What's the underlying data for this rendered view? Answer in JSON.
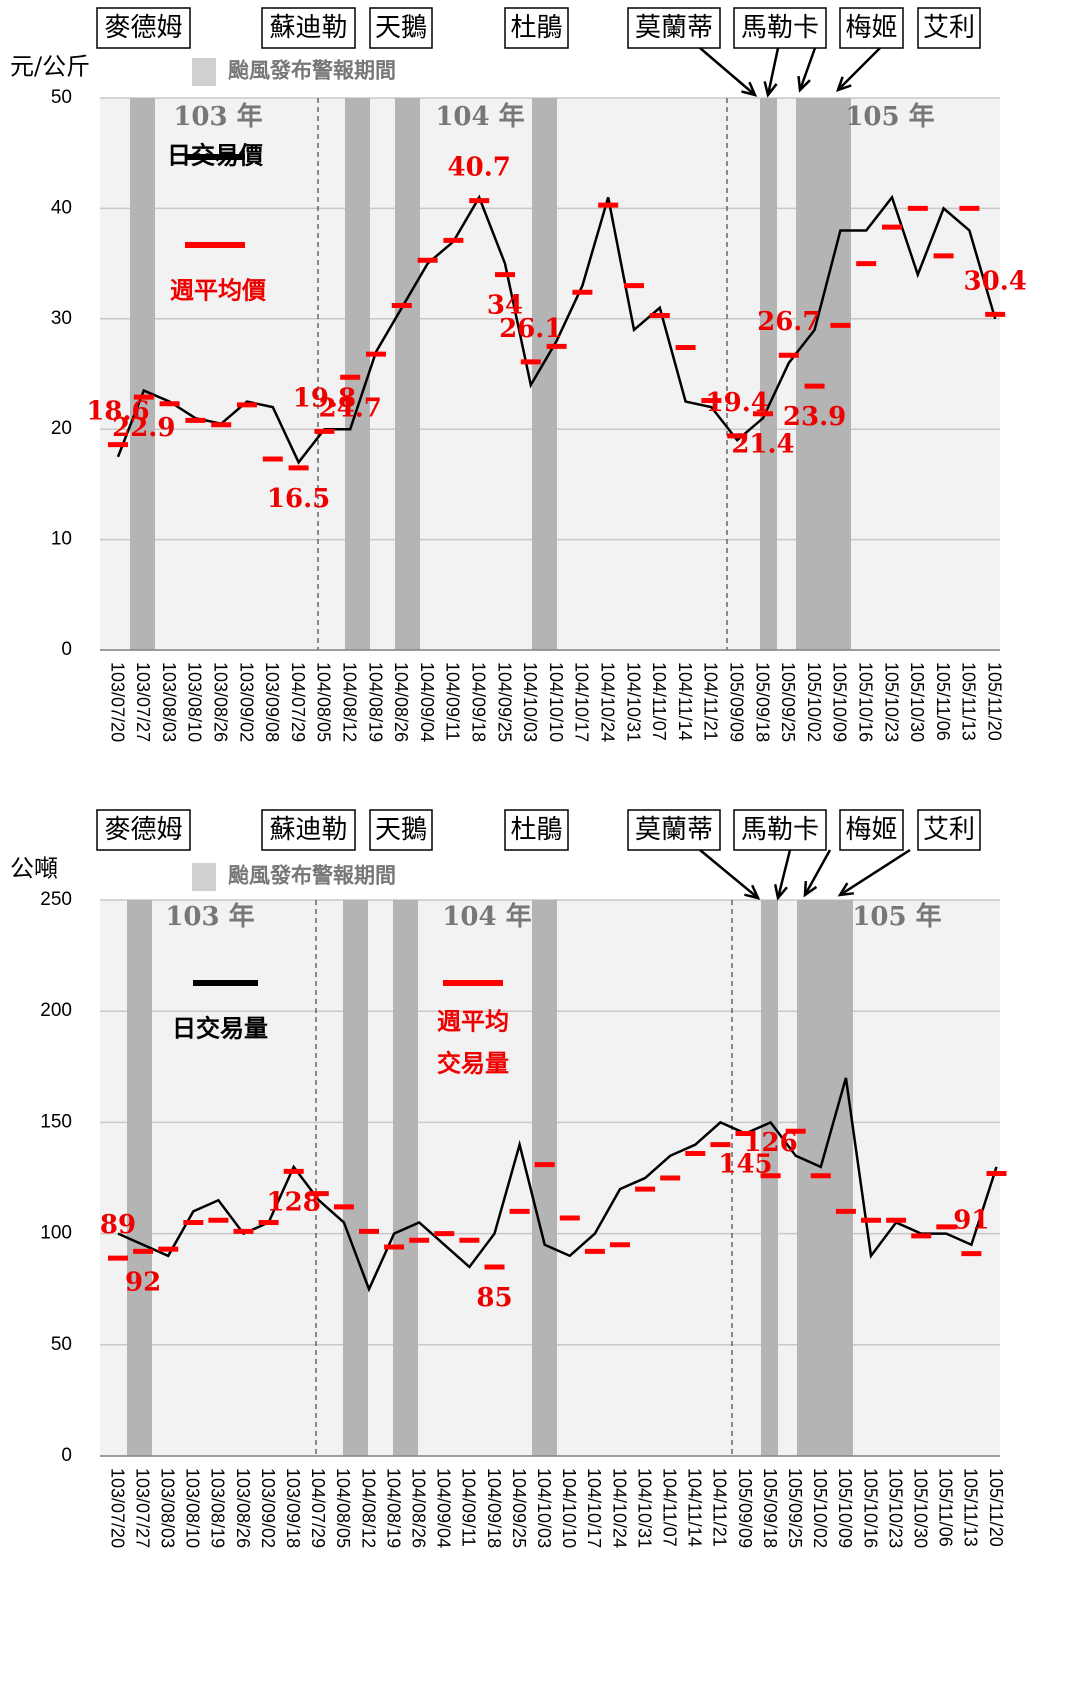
{
  "chart_data": [
    {
      "type": "line",
      "y_label": "元/公斤",
      "band_legend": "颱風發布警報期間",
      "typhoons": [
        "麥德姆",
        "蘇迪勒",
        "天鵝",
        "杜鵑",
        "莫蘭蒂",
        "馬勒卡",
        "梅姬",
        "艾利"
      ],
      "year_labels": [
        "103 年",
        "104 年",
        "105 年"
      ],
      "categories": [
        "103/07/20",
        "103/07/27",
        "103/08/03",
        "103/08/10",
        "103/08/26",
        "103/09/02",
        "103/09/08",
        "104/07/29",
        "104/08/05",
        "104/08/12",
        "104/08/19",
        "104/08/26",
        "104/09/04",
        "104/09/11",
        "104/09/18",
        "104/09/25",
        "104/10/03",
        "104/10/10",
        "104/10/17",
        "104/10/24",
        "104/10/31",
        "104/11/07",
        "104/11/14",
        "104/11/21",
        "105/09/09",
        "105/09/18",
        "105/09/25",
        "105/10/02",
        "105/10/09",
        "105/10/16",
        "105/10/23",
        "105/10/30",
        "105/11/06",
        "105/11/13",
        "105/11/20"
      ],
      "ylim": [
        0,
        50
      ],
      "yticks": [
        0,
        10,
        20,
        30,
        40,
        50
      ],
      "series": [
        {
          "name": "日交易價",
          "color": "#000000",
          "values": [
            17.5,
            23.5,
            22.5,
            21,
            20.5,
            22.5,
            22,
            17,
            20,
            20,
            27,
            31,
            35,
            37,
            41,
            35,
            24,
            28,
            33,
            41,
            29,
            31,
            22.5,
            22,
            19,
            21,
            26,
            29,
            38,
            38,
            41,
            34,
            40,
            38,
            30
          ]
        },
        {
          "name": "週平均價",
          "color": "#ff0000",
          "values": [
            18.6,
            22.9,
            22.3,
            20.8,
            20.4,
            22.2,
            17.3,
            16.5,
            19.8,
            24.7,
            26.8,
            31.2,
            35.3,
            37.1,
            40.7,
            34,
            26.1,
            27.5,
            32.4,
            40.3,
            33,
            30.3,
            27.4,
            22.6,
            19.4,
            21.4,
            26.7,
            23.9,
            29.4,
            35,
            38.3,
            40,
            35.7,
            40,
            30.4
          ],
          "value_labels": [
            "18.6",
            "22.9",
            null,
            null,
            null,
            null,
            null,
            "16.5",
            "19.8",
            "24.7",
            null,
            null,
            null,
            null,
            "40.7",
            "34",
            "26.1",
            null,
            null,
            null,
            null,
            null,
            null,
            null,
            "19.4",
            "21.4",
            "26.7",
            "23.9",
            null,
            null,
            null,
            null,
            null,
            null,
            "30.4"
          ]
        }
      ]
    },
    {
      "type": "line",
      "y_label": "公噸",
      "band_legend": "颱風發布警報期間",
      "typhoons": [
        "麥德姆",
        "蘇迪勒",
        "天鵝",
        "杜鵑",
        "莫蘭蒂",
        "馬勒卡",
        "梅姬",
        "艾利"
      ],
      "year_labels": [
        "103 年",
        "104 年",
        "105 年"
      ],
      "categories": [
        "103/07/20",
        "103/07/27",
        "103/08/03",
        "103/08/10",
        "103/08/19",
        "103/08/26",
        "103/09/02",
        "103/09/18",
        "104/07/29",
        "104/08/05",
        "104/08/12",
        "104/08/19",
        "104/08/26",
        "104/09/04",
        "104/09/11",
        "104/09/18",
        "104/09/25",
        "104/10/03",
        "104/10/10",
        "104/10/17",
        "104/10/24",
        "104/10/31",
        "104/11/07",
        "104/11/14",
        "104/11/21",
        "105/09/09",
        "105/09/18",
        "105/09/25",
        "105/10/02",
        "105/10/09",
        "105/10/16",
        "105/10/23",
        "105/10/30",
        "105/11/06",
        "105/11/13",
        "105/11/20"
      ],
      "ylim": [
        0,
        250
      ],
      "yticks": [
        0,
        50,
        100,
        150,
        200,
        250
      ],
      "series": [
        {
          "name": "日交易量",
          "color": "#000000",
          "values": [
            100,
            95,
            90,
            110,
            115,
            100,
            105,
            130,
            115,
            105,
            75,
            100,
            105,
            95,
            85,
            100,
            140,
            95,
            90,
            100,
            120,
            125,
            135,
            140,
            150,
            145,
            150,
            135,
            130,
            170,
            90,
            105,
            100,
            100,
            95,
            130
          ]
        },
        {
          "legend_lines": [
            "週平均",
            "交易量"
          ],
          "color": "#ff0000",
          "values": [
            89,
            92,
            93,
            105,
            106,
            101,
            105,
            128,
            118,
            112,
            101,
            94,
            97,
            100,
            97,
            85,
            110,
            131,
            107,
            92,
            95,
            120,
            125,
            136,
            140,
            145,
            126,
            146,
            126,
            110,
            106,
            106,
            99,
            103,
            91,
            127
          ],
          "value_labels": [
            "89",
            "92",
            null,
            null,
            null,
            null,
            null,
            "128",
            null,
            null,
            null,
            null,
            null,
            null,
            null,
            "85",
            null,
            null,
            null,
            null,
            null,
            null,
            null,
            null,
            null,
            "145",
            "126",
            null,
            null,
            null,
            null,
            null,
            null,
            null,
            "91",
            null
          ]
        }
      ]
    }
  ]
}
